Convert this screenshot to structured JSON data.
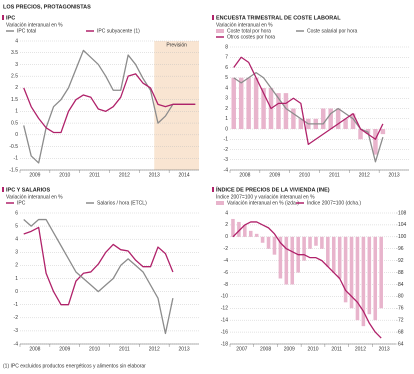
{
  "title": "LOS PRECIOS, PROTAGONISTAS",
  "footnote": "(1) IPC excluidos productos energéticos y alimentos sin elaborar",
  "chart_data": [
    {
      "type": "line",
      "title": "IPC",
      "subtitle": "Variación interanual en %",
      "x": [
        2009.125,
        2009.375,
        2009.625,
        2009.875,
        2010.125,
        2010.375,
        2010.625,
        2010.875,
        2011.125,
        2011.375,
        2011.625,
        2011.875,
        2012.125,
        2012.375,
        2012.625,
        2012.875,
        2013.125,
        2013.375,
        2013.625,
        2013.875,
        2014.125,
        2014.375,
        2014.625,
        2014.875
      ],
      "series": [
        {
          "name": "IPC total",
          "color": "#8c8c8c",
          "kind": "line",
          "values": [
            0.4,
            -0.9,
            -1.2,
            0.3,
            1.2,
            1.5,
            2.0,
            2.8,
            3.6,
            3.3,
            3.0,
            2.5,
            1.9,
            1.9,
            3.4,
            3.0,
            2.4,
            1.9,
            0.5,
            0.8,
            1.3,
            1.3,
            1.3,
            1.3
          ]
        },
        {
          "name": "IPC subyacente (1)",
          "color": "#b0226a",
          "kind": "line",
          "values": [
            2.0,
            1.2,
            0.7,
            0.3,
            0.1,
            0.1,
            1.0,
            1.5,
            1.7,
            1.6,
            1.1,
            1.0,
            1.2,
            1.6,
            2.5,
            2.6,
            2.2,
            2.0,
            1.3,
            1.2,
            1.3,
            1.3,
            1.3,
            1.3
          ]
        }
      ],
      "xlim": [
        2009,
        2015
      ],
      "xticks": [
        2009,
        2010,
        2011,
        2012,
        2013,
        2014
      ],
      "ylim": [
        -1.5,
        4.0
      ],
      "yticks": [
        -1.5,
        -1.0,
        -0.5,
        0.0,
        0.5,
        1.0,
        1.5,
        2.0,
        2.5,
        3.0,
        3.5,
        4.0
      ],
      "shaded_region": {
        "label": "Previsión",
        "xlim": [
          2013.5,
          2015
        ],
        "color": "#f9e5d2"
      },
      "grid": true
    },
    {
      "type": "combo",
      "title": "ENCUESTA TRIMESTRAL DE COSTE LABORAL",
      "subtitle": "Variación interanual en %",
      "x": [
        2008.125,
        2008.375,
        2008.625,
        2008.875,
        2009.125,
        2009.375,
        2009.625,
        2009.875,
        2010.125,
        2010.375,
        2010.625,
        2010.875,
        2011.125,
        2011.375,
        2011.625,
        2011.875,
        2012.125,
        2012.375,
        2012.625,
        2012.875,
        2013.125
      ],
      "series": [
        {
          "name": "Coste total por hora",
          "color": "#e8b4cc",
          "kind": "bar",
          "values": [
            5,
            5,
            5,
            5,
            4,
            4,
            3.5,
            3.5,
            2,
            1,
            1,
            1,
            2,
            2,
            2,
            1,
            1.5,
            -1,
            -0.5,
            -2.5,
            -0.5
          ]
        },
        {
          "name": "Coste salarial por hora",
          "color": "#8c8c8c",
          "kind": "line",
          "values": [
            5,
            4.5,
            5,
            5.5,
            5,
            4,
            3,
            2,
            1.5,
            1,
            0.5,
            0.5,
            0.5,
            1.5,
            2,
            1.5,
            1,
            0,
            -0.3,
            -3.2,
            -0.8
          ]
        },
        {
          "name": "Otros costes por hora",
          "color": "#b0226a",
          "kind": "line",
          "values": [
            6,
            7,
            6.5,
            5,
            3.5,
            2,
            2.5,
            2.5,
            3,
            2.5,
            -1.5,
            -1,
            -0.5,
            0,
            0.5,
            1,
            1.5,
            0,
            -0.5,
            -1,
            0.5
          ]
        }
      ],
      "xlim": [
        2008,
        2014
      ],
      "xticks": [
        2008,
        2009,
        2010,
        2011,
        2012,
        2013
      ],
      "ylim": [
        -4,
        8
      ],
      "yticks": [
        -4,
        -3,
        -2,
        -1,
        0,
        1,
        2,
        3,
        4,
        5,
        6,
        7,
        8
      ],
      "grid": true
    },
    {
      "type": "line",
      "title": "IPC Y SALARIOS",
      "subtitle": "Variación interanual en %",
      "x": [
        2008.125,
        2008.375,
        2008.625,
        2008.875,
        2009.125,
        2009.375,
        2009.625,
        2009.875,
        2010.125,
        2010.375,
        2010.625,
        2010.875,
        2011.125,
        2011.375,
        2011.625,
        2011.875,
        2012.125,
        2012.375,
        2012.625,
        2012.875,
        2013.125
      ],
      "series": [
        {
          "name": "IPC",
          "color": "#b0226a",
          "kind": "line",
          "values": [
            4.4,
            4.6,
            4.9,
            1.4,
            0,
            -1,
            -1,
            0.8,
            1.4,
            1.5,
            2.1,
            3.0,
            3.6,
            3.2,
            3.1,
            2.4,
            1.9,
            1.9,
            3.4,
            2.9,
            1.5
          ]
        },
        {
          "name": "Salarios / hora (ETCL)",
          "color": "#8c8c8c",
          "kind": "line",
          "values": [
            5.5,
            5,
            5.5,
            5.5,
            4.5,
            3.5,
            2.5,
            1.5,
            1,
            0.5,
            0,
            0.5,
            1,
            2,
            2.5,
            2,
            1.5,
            0.5,
            -0.5,
            -3.2,
            -0.5
          ]
        }
      ],
      "xlim": [
        2008,
        2014
      ],
      "xticks": [
        2008,
        2009,
        2010,
        2011,
        2012,
        2013
      ],
      "ylim": [
        -4,
        6
      ],
      "yticks": [
        -4,
        -3,
        -2,
        -1,
        0,
        1,
        2,
        3,
        4,
        5,
        6
      ],
      "grid": true
    },
    {
      "type": "combo",
      "title": "ÍNDICE DE PRECIOS DE LA VIVIENDA (INE)",
      "subtitle": "Índice 2007=100 y variación interanual en %",
      "x": [
        2007.125,
        2007.375,
        2007.625,
        2007.875,
        2008.125,
        2008.375,
        2008.625,
        2008.875,
        2009.125,
        2009.375,
        2009.625,
        2009.875,
        2010.125,
        2010.375,
        2010.625,
        2010.875,
        2011.125,
        2011.375,
        2011.625,
        2011.875,
        2012.125,
        2012.375,
        2012.625,
        2012.875,
        2013.125,
        2013.375
      ],
      "series": [
        {
          "name": "Variación interanual en % (izda.)",
          "color": "#e8b4cc",
          "kind": "bar",
          "values": [
            3,
            2.5,
            2,
            1,
            0.5,
            -1,
            -2,
            -3,
            -7,
            -8,
            -8,
            -6,
            -4,
            -2,
            -1.5,
            -2,
            -5,
            -6,
            -7,
            -11,
            -12,
            -14,
            -15,
            -13,
            -14,
            -12
          ]
        },
        {
          "name": "Índice 2007=100 (dcha.)",
          "color": "#b0226a",
          "kind": "line",
          "axis": "y2",
          "values": [
            100,
            102,
            104,
            105,
            105,
            104,
            103,
            101,
            98,
            96,
            95,
            94,
            94,
            93,
            93,
            92,
            90,
            88,
            86,
            82,
            80,
            78,
            75,
            71,
            68,
            66
          ]
        }
      ],
      "xlim": [
        2007,
        2014
      ],
      "xticks": [
        2007,
        2008,
        2009,
        2010,
        2011,
        2012,
        2013
      ],
      "ylim": [
        -18,
        4
      ],
      "yticks": [
        -18,
        -16,
        -14,
        -12,
        -10,
        -8,
        -6,
        -4,
        -2,
        0,
        2,
        4
      ],
      "y2lim": [
        64,
        108
      ],
      "y2ticks": [
        64,
        68,
        72,
        76,
        80,
        84,
        88,
        92,
        96,
        100,
        104,
        108
      ],
      "grid": true
    }
  ]
}
